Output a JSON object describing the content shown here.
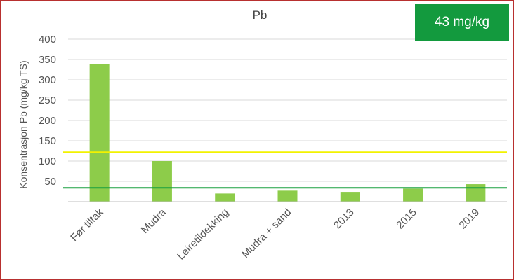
{
  "badge": {
    "label": "43 mg/kg"
  },
  "colors": {
    "bar": "#8dcc4a",
    "threshold_yellow": "#f2f200",
    "threshold_green": "#1aa040",
    "frame": "#b8302f",
    "badge_bg": "#139a3e"
  },
  "chart_data": {
    "type": "bar",
    "title": "Pb",
    "ylabel": "Konsentrasjon Pb (mg/kg TS)",
    "xlabel": "",
    "ylim": [
      0,
      400
    ],
    "yticks": [
      "400",
      "350",
      "300",
      "250",
      "200",
      "150",
      "100",
      "50"
    ],
    "categories": [
      "Før tiltak",
      "Mudra",
      "Leiretildekking",
      "Mudra + sand",
      "2013",
      "2015",
      "2019"
    ],
    "values": [
      338,
      100,
      20,
      27,
      24,
      32,
      43
    ],
    "reference_lines": [
      {
        "color": "yellow",
        "value": 122
      },
      {
        "color": "green",
        "value": 34
      }
    ],
    "grid": true,
    "legend": "none"
  }
}
